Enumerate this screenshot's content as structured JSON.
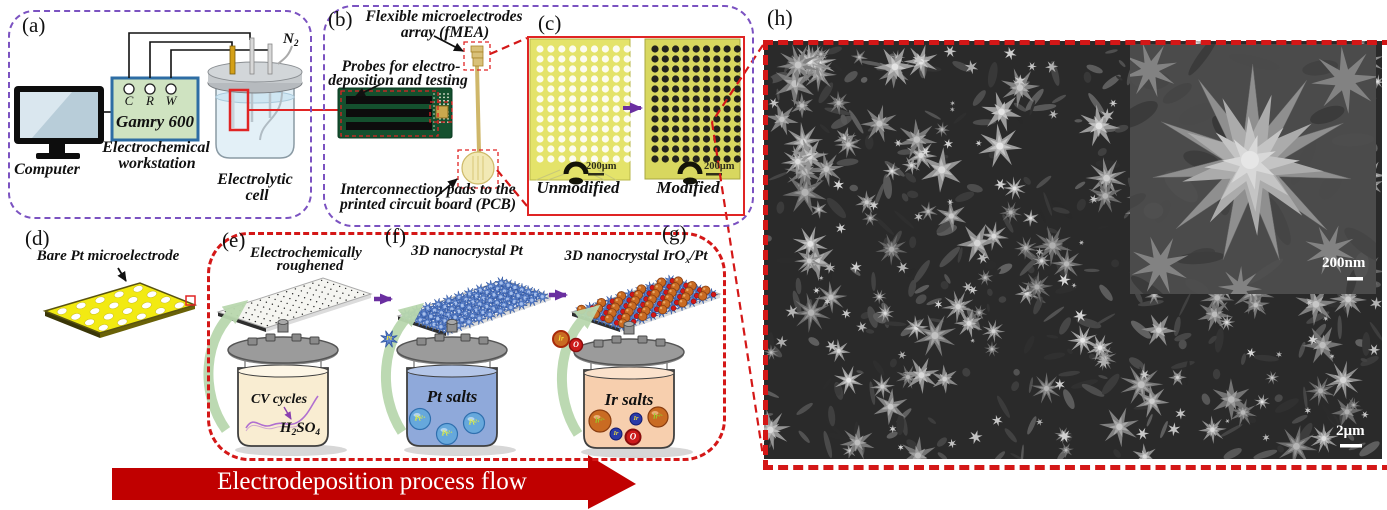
{
  "colors": {
    "purple_dashed": "#7b52c1",
    "red": "#e02424",
    "red_dashed": "#d41717",
    "banner_red": "#c00000",
    "workstation_fill": "#cfe3c1",
    "workstation_border": "#2e6da4",
    "plate_yellow": "#f2ea12",
    "img_yellow_left": "#e4e36a",
    "img_yellow_right": "#d8d75f",
    "pcb_green": "#14502e",
    "fmea_gold": "#d9c179",
    "liquid_acid": "#f9edd2",
    "liquid_pt": "#8fa9da",
    "liquid_ir": "#f7cfae",
    "nano_blue": "#5b82cc",
    "ir_orange": "#c96b22",
    "green_arrow": "#b9d8ae",
    "purple_arrow": "#6a2fa0",
    "sem_bg": "#2a2a2a"
  },
  "panels": {
    "a": {
      "tag": "(a)",
      "computer": "Computer",
      "terminals": [
        "C",
        "R",
        "W"
      ],
      "device": "Gamry 600",
      "workstation_l1": "Electrochemical",
      "workstation_l2": "workstation",
      "cell_l1": "Electrolytic",
      "cell_l2": "cell",
      "gas": {
        "base": "N",
        "sub": "2"
      }
    },
    "b": {
      "tag": "(b)",
      "fmea_l1": "Flexible microelectrodes",
      "fmea_l2": "array (fMEA)",
      "probes_l1": "Probes for electro-",
      "probes_l2": "deposition and testing",
      "pads_l1": "Interconnection pads to the",
      "pads_l2": "printed circuit board (PCB)"
    },
    "c": {
      "tag": "(c)",
      "left_label": "Unmodified",
      "right_label": "Modified",
      "scale": "200µm"
    },
    "d": {
      "tag": "(d)",
      "caption": "Bare Pt microelectrode"
    },
    "e": {
      "tag": "(e)",
      "caption_l1": "Electrochemically",
      "caption_l2": "roughened",
      "cv": "CV cycles",
      "acid": {
        "b1": "H",
        "s1": "2",
        "b2": "SO",
        "s2": "4"
      }
    },
    "f": {
      "tag": "(f)",
      "caption": "3D nanocrystal Pt",
      "jar": "Pt salts",
      "ion": {
        "base": "Pt",
        "sup": "2+"
      },
      "particle": "Pt"
    },
    "g": {
      "tag": "(g)",
      "caption": {
        "b1": "3D nanocrystal IrO",
        "sub": "x",
        "b2": "/Pt"
      },
      "jar": "Ir salts",
      "ion": {
        "base": "Ir",
        "sup": "3+"
      },
      "atom_ir": "Ir",
      "atom_o": "O"
    },
    "h": {
      "tag": "(h)",
      "scale_inset": "200nm",
      "scale_main": "2µm"
    }
  },
  "banner": {
    "text": "Electrodeposition process flow"
  }
}
